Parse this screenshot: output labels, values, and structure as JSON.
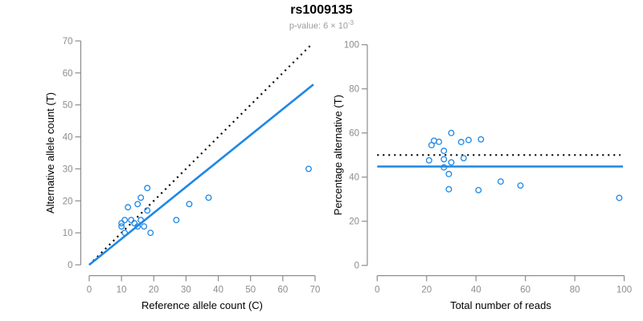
{
  "header": {
    "title": "rs1009135",
    "subtitle_main": "p-value: 6 × 10",
    "subtitle_exponent": "-3"
  },
  "style": {
    "point_color": "#1e87e5",
    "line_color": "#1e87e5",
    "dotted_line_color": "#000000",
    "axis_color": "#8c8c8c",
    "tick_label_color": "#8c8c8c",
    "title_color": "#000000",
    "subtitle_color": "#9a9a9a"
  },
  "chart_data": [
    {
      "type": "scatter",
      "name": "allele-count-scatter",
      "xlabel": "Reference allele count (C)",
      "ylabel": "Alternative allele count (T)",
      "xlim": [
        0,
        70
      ],
      "ylim": [
        0,
        70
      ],
      "xticks": [
        0,
        10,
        20,
        30,
        40,
        50,
        60,
        70
      ],
      "yticks": [
        0,
        10,
        20,
        30,
        40,
        50,
        60,
        70
      ],
      "grid": false,
      "points": [
        [
          12,
          18
        ],
        [
          10,
          13
        ],
        [
          11,
          14
        ],
        [
          10,
          12
        ],
        [
          15,
          19
        ],
        [
          16,
          21
        ],
        [
          18,
          24
        ],
        [
          13,
          14
        ],
        [
          14,
          13
        ],
        [
          11,
          10
        ],
        [
          16,
          14
        ],
        [
          18,
          17
        ],
        [
          15,
          12
        ],
        [
          17,
          12
        ],
        [
          31,
          19
        ],
        [
          37,
          21
        ],
        [
          19,
          10
        ],
        [
          27,
          14
        ],
        [
          68,
          30
        ]
      ],
      "lines": [
        {
          "name": "identity",
          "style": "dotted",
          "color": "#000000",
          "from": [
            0,
            0
          ],
          "to": [
            69,
            69
          ]
        },
        {
          "name": "fit",
          "style": "solid",
          "color": "#1e87e5",
          "from": [
            0,
            0
          ],
          "to": [
            69.5,
            56.4
          ]
        }
      ]
    },
    {
      "type": "scatter",
      "name": "percentage-scatter",
      "xlabel": "Total number of reads",
      "ylabel": "Percentage alternative (T)",
      "xlim": [
        0,
        100
      ],
      "ylim": [
        0,
        100
      ],
      "xticks": [
        0,
        20,
        40,
        60,
        80,
        100
      ],
      "yticks": [
        0,
        20,
        40,
        60,
        80,
        100
      ],
      "grid": false,
      "points": [
        [
          30,
          60.0
        ],
        [
          23,
          56.5
        ],
        [
          25,
          56.0
        ],
        [
          22,
          54.5
        ],
        [
          34,
          55.9
        ],
        [
          37,
          56.8
        ],
        [
          42,
          57.1
        ],
        [
          27,
          51.9
        ],
        [
          27,
          48.1
        ],
        [
          21,
          47.6
        ],
        [
          30,
          46.7
        ],
        [
          35,
          48.6
        ],
        [
          27,
          44.4
        ],
        [
          29,
          41.4
        ],
        [
          50,
          38.0
        ],
        [
          58,
          36.2
        ],
        [
          29,
          34.5
        ],
        [
          41,
          34.1
        ],
        [
          98,
          30.6
        ]
      ],
      "lines": [
        {
          "name": "expected-50pct",
          "style": "dotted",
          "color": "#000000",
          "from": [
            0,
            50
          ],
          "to": [
            98.5,
            50
          ]
        },
        {
          "name": "mean-percentage",
          "style": "solid",
          "color": "#1e87e5",
          "from": [
            0,
            44.8
          ],
          "to": [
            99.5,
            44.8
          ]
        }
      ]
    }
  ]
}
